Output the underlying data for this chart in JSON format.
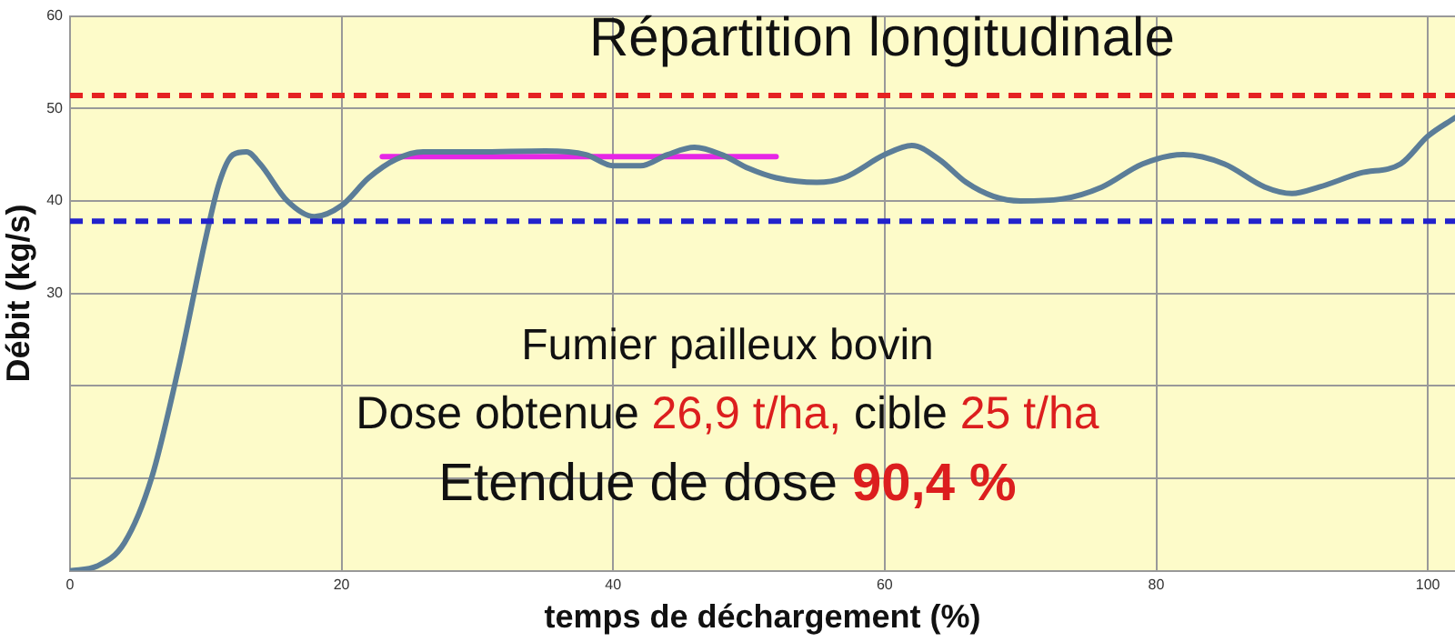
{
  "chart_data": {
    "type": "line",
    "title": "Répartition longitudinale",
    "xlabel": "temps de déchargement (%)",
    "ylabel": "Débit (kg/s)",
    "annotations": [
      "Fumier pailleux bovin",
      "Dose obtenue 26,9 t/ha, cible 25 t/ha",
      "Etendue de dose 90,4 %"
    ],
    "xlim": [
      0,
      102
    ],
    "xticks": [
      0,
      20,
      40,
      60,
      80,
      100
    ],
    "ylim": [
      0,
      60
    ],
    "yticks": [
      {
        "value": 0,
        "label": null
      },
      {
        "value": 10,
        "label": null
      },
      {
        "value": 20,
        "label": null
      },
      30,
      40,
      50,
      60
    ],
    "grid": true,
    "legend": false,
    "marker": "none",
    "series": [
      {
        "color": "#5b7d98",
        "x": [
          0,
          2,
          4,
          6,
          8,
          10,
          11,
          12,
          13,
          14,
          16,
          18,
          20,
          22,
          24,
          26,
          30,
          35,
          38,
          40,
          42,
          44,
          46,
          48,
          50,
          52,
          55,
          57,
          60,
          62,
          64,
          66,
          68,
          70,
          73,
          76,
          79,
          82,
          85,
          88,
          90,
          92,
          95,
          98,
          100,
          102
        ],
        "values": [
          0,
          0.5,
          3,
          10,
          22,
          36,
          42,
          45,
          45.3,
          44,
          40,
          38.3,
          39.5,
          42.5,
          44.5,
          45.3,
          45.3,
          45.4,
          45,
          43.8,
          43.8,
          45,
          45.8,
          45,
          43.5,
          42.5,
          42,
          42.5,
          45,
          46,
          44.5,
          42,
          40.5,
          40,
          40.2,
          41.5,
          44,
          45,
          44,
          41.5,
          40.8,
          41.5,
          43,
          44,
          47,
          49
        ]
      },
      {
        "color": "#e626e6",
        "x": [
          23,
          52
        ],
        "values": [
          44.8,
          44.8
        ]
      }
    ],
    "ref_lines": [
      {
        "axis": "y",
        "value": 51.4,
        "color": "#e52222",
        "line_style": "dashed"
      },
      {
        "axis": "y",
        "value": 37.8,
        "color": "#2222cc",
        "line_style": "dashed"
      }
    ]
  }
}
